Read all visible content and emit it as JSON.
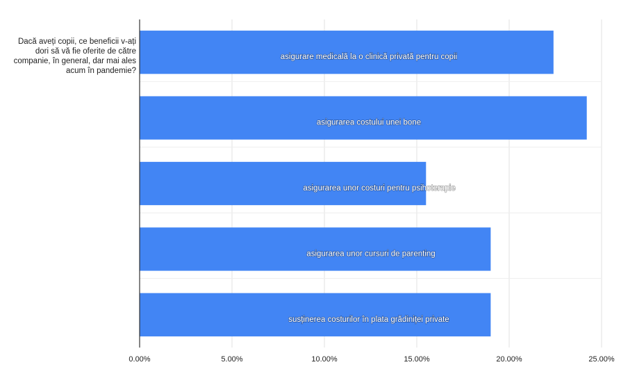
{
  "chart_data": {
    "type": "bar",
    "orientation": "horizontal",
    "title": "",
    "ylabel": "Dacă aveți copii, ce beneficii v-ați dori să vă fie oferite de către companie, în general, dar mai ales acum în pandemie?",
    "xlabel": "",
    "categories": [
      "asigurare medicală la o clinică privată pentru copii",
      "asigurarea costului unei bone",
      "asigurarea unor costuri pentru psihoterapie",
      "asigurarea unor cursuri de parenting",
      "susținerea costurilor în plata grădiniței private"
    ],
    "series": [
      {
        "values": [
          22.4,
          24.2,
          15.5,
          19.0,
          19.0
        ]
      }
    ],
    "xlim": [
      0,
      25
    ],
    "xticks": [
      "0.00%",
      "5.00%",
      "10.00%",
      "15.00%",
      "20.00%",
      "25.00%"
    ],
    "grid": true,
    "legend": "none",
    "bar_color": "#4285f4",
    "grid_color": "#e0e0e0",
    "axis_color": "#333333"
  }
}
